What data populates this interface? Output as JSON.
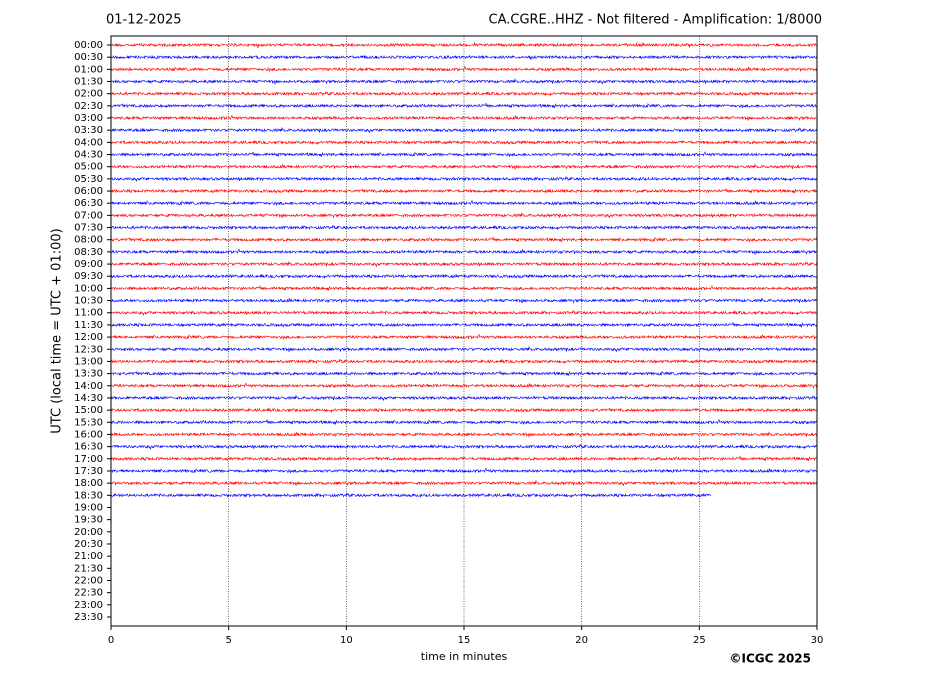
{
  "chart_data": {
    "type": "helicorder",
    "date": "01-12-2025",
    "title": "CA.CGRE..HHZ - Not filtered - Amplification: 1/8000",
    "xlabel": "time in minutes",
    "ylabel": "UTC (local time = UTC + 01:00)",
    "credit": "©ICGC 2025",
    "categories": [
      "00:00",
      "00:30",
      "01:00",
      "01:30",
      "02:00",
      "02:30",
      "03:00",
      "03:30",
      "04:00",
      "04:30",
      "05:00",
      "05:30",
      "06:00",
      "06:30",
      "07:00",
      "07:30",
      "08:00",
      "08:30",
      "09:00",
      "09:30",
      "10:00",
      "10:30",
      "11:00",
      "11:30",
      "12:00",
      "12:30",
      "13:00",
      "13:30",
      "14:00",
      "14:30",
      "15:00",
      "15:30",
      "16:00",
      "16:30",
      "17:00",
      "17:30",
      "18:00",
      "18:30",
      "19:00",
      "19:30",
      "20:00",
      "20:30",
      "21:00",
      "21:30",
      "22:00",
      "22:30",
      "23:00",
      "23:30"
    ],
    "trace_colors": [
      "#ff0000",
      "#0000ff"
    ],
    "trace_end": [
      30,
      30,
      30,
      30,
      30,
      30,
      30,
      30,
      30,
      30,
      30,
      30,
      30,
      30,
      30,
      30,
      30,
      30,
      30,
      30,
      30,
      30,
      30,
      30,
      30,
      30,
      30,
      30,
      30,
      30,
      30,
      30,
      30,
      30,
      30,
      30,
      30,
      25.5
    ],
    "xlim": [
      0,
      30
    ],
    "xticks": [
      0,
      5,
      10,
      15,
      20,
      25,
      30
    ],
    "grid": true
  }
}
